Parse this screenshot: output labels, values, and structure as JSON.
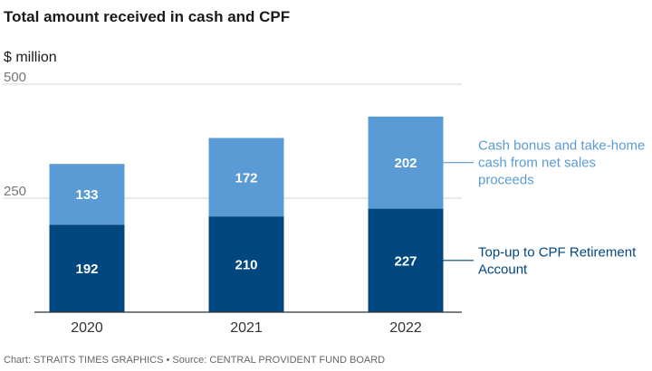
{
  "chart_data": {
    "type": "bar",
    "stacked": true,
    "title": "Total amount received in cash and CPF",
    "ylabel": "$ million",
    "xlabel": "",
    "categories": [
      "2020",
      "2021",
      "2022"
    ],
    "series": [
      {
        "name": "Top-up to CPF Retirement Account",
        "legend_lines": [
          "Top-up to CPF Retirement",
          "Account"
        ],
        "values": [
          192,
          210,
          227
        ],
        "color": "#00467f"
      },
      {
        "name": "Cash bonus and take-home cash from net sales proceeds",
        "legend_lines": [
          "Cash bonus and take-home",
          "cash from net sales",
          "proceeds"
        ],
        "values": [
          133,
          172,
          202
        ],
        "color": "#5b9bd5"
      }
    ],
    "ylim": [
      0,
      500
    ],
    "yticks": [
      250,
      500
    ],
    "grid": true,
    "legend_position": "right",
    "source": "Chart: STRAITS TIMES GRAPHICS • Source: CENTRAL PROVIDENT FUND BOARD"
  }
}
